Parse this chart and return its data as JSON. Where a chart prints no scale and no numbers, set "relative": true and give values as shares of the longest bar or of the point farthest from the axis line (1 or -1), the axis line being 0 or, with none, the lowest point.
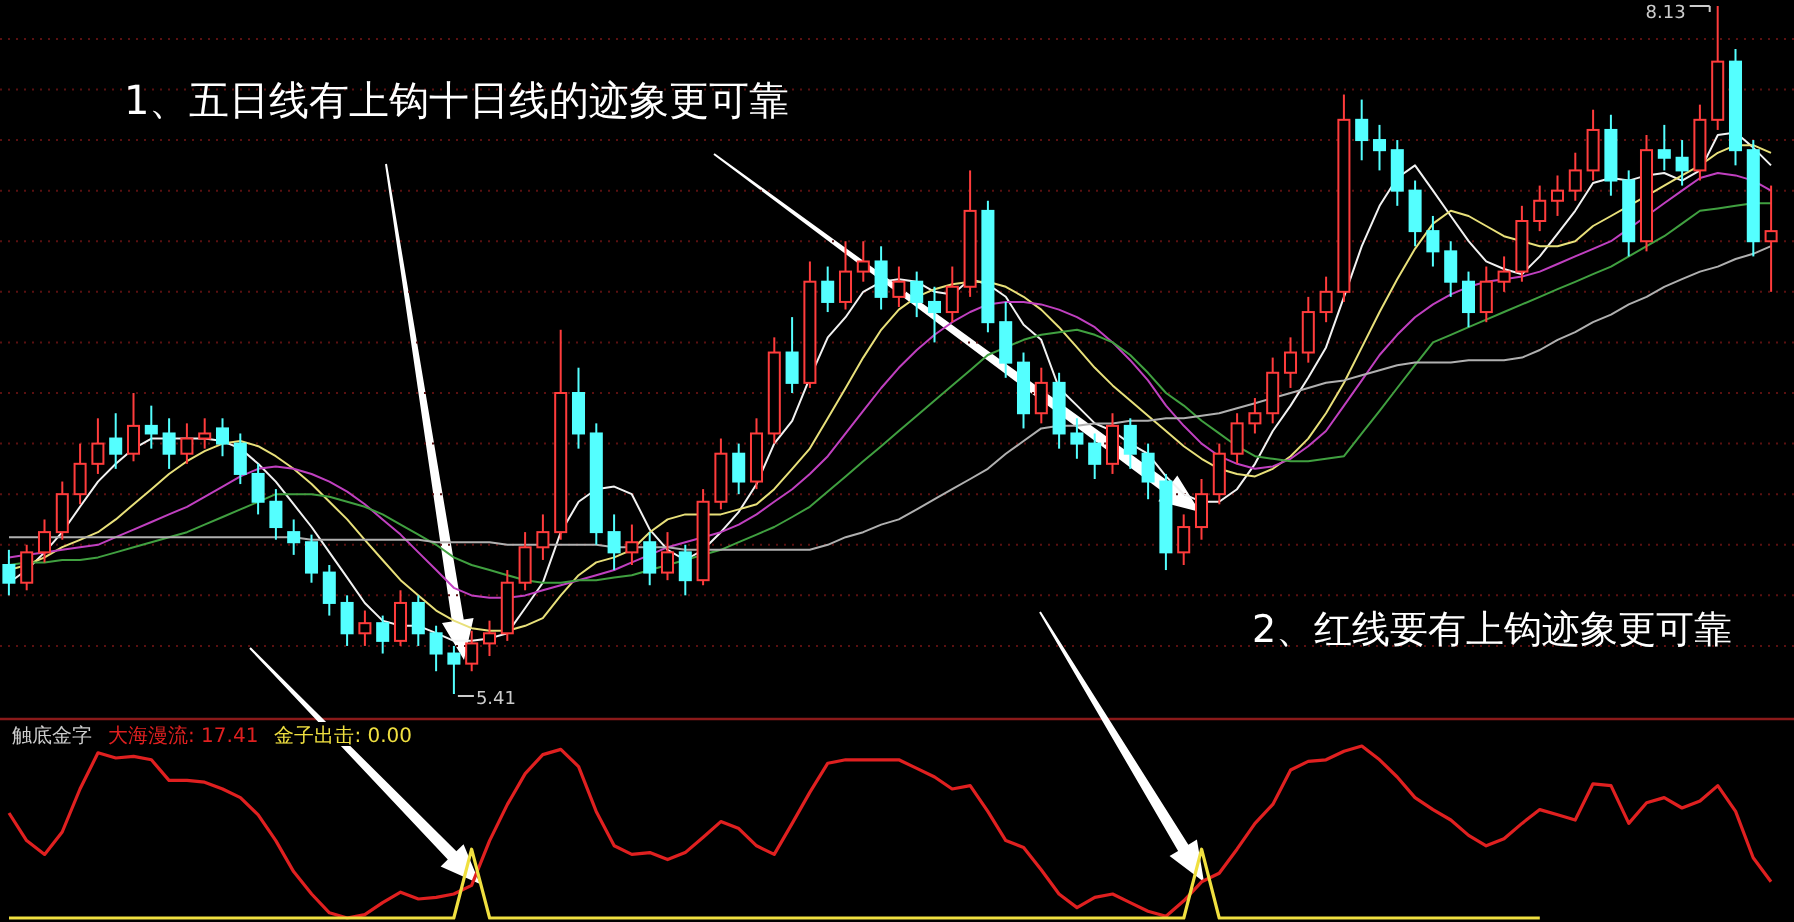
{
  "chart_data": [
    {
      "type": "candlestick",
      "grid": "y",
      "yticks": [
        {
          "value": 5.6,
          "label": null
        },
        {
          "value": 5.8,
          "label": null
        },
        {
          "value": 6.0,
          "label": null
        },
        {
          "value": 6.2,
          "label": null
        },
        {
          "value": 6.4,
          "label": null
        },
        {
          "value": 6.6,
          "label": null
        },
        {
          "value": 6.8,
          "label": null
        },
        {
          "value": 7.0,
          "label": null
        },
        {
          "value": 7.2,
          "label": null
        },
        {
          "value": 7.4,
          "label": null
        },
        {
          "value": 7.6,
          "label": null
        },
        {
          "value": 7.8,
          "label": null
        },
        {
          "value": 8.0,
          "label": null
        }
      ],
      "annotations": [
        "1、五日线有上钩十日线的迹象更可靠",
        "2、红线要有上钩迹象更可靠",
        "8.13",
        "5.41"
      ],
      "categories": [
        null,
        null,
        null,
        null,
        null,
        null,
        null,
        null,
        null,
        null,
        null,
        null,
        null,
        null,
        null,
        null,
        null,
        null,
        null,
        null,
        null,
        null,
        null,
        null,
        null,
        null,
        null,
        null,
        null,
        null,
        null,
        null,
        null,
        null,
        null,
        null,
        null,
        null,
        null,
        null,
        null,
        null,
        null,
        null,
        null,
        null,
        null,
        null,
        null,
        null,
        null,
        null,
        null,
        null,
        null,
        null,
        null,
        null,
        null,
        null,
        null,
        null,
        null,
        null,
        null,
        null,
        null,
        null,
        null,
        null,
        null,
        null,
        null,
        null,
        null,
        null,
        null,
        null,
        null,
        null,
        null,
        null,
        null,
        null,
        null,
        null,
        null,
        null,
        null,
        null,
        null,
        null,
        null,
        null,
        null,
        null,
        null,
        null,
        null,
        null
      ],
      "ohlc": [
        [
          5.92,
          5.98,
          5.8,
          5.85
        ],
        [
          5.85,
          6.0,
          5.82,
          5.97
        ],
        [
          5.97,
          6.1,
          5.93,
          6.05
        ],
        [
          6.05,
          6.25,
          6.02,
          6.2
        ],
        [
          6.2,
          6.4,
          6.16,
          6.32
        ],
        [
          6.32,
          6.5,
          6.28,
          6.4
        ],
        [
          6.42,
          6.52,
          6.3,
          6.36
        ],
        [
          6.36,
          6.6,
          6.33,
          6.47
        ],
        [
          6.47,
          6.55,
          6.38,
          6.44
        ],
        [
          6.44,
          6.5,
          6.3,
          6.36
        ],
        [
          6.36,
          6.48,
          6.32,
          6.42
        ],
        [
          6.42,
          6.5,
          6.38,
          6.44
        ],
        [
          6.46,
          6.5,
          6.35,
          6.4
        ],
        [
          6.4,
          6.44,
          6.24,
          6.28
        ],
        [
          6.28,
          6.32,
          6.12,
          6.17
        ],
        [
          6.17,
          6.22,
          6.02,
          6.07
        ],
        [
          6.05,
          6.1,
          5.96,
          6.01
        ],
        [
          6.01,
          6.04,
          5.85,
          5.89
        ],
        [
          5.89,
          5.92,
          5.72,
          5.77
        ],
        [
          5.77,
          5.8,
          5.6,
          5.65
        ],
        [
          5.65,
          5.74,
          5.6,
          5.69
        ],
        [
          5.69,
          5.72,
          5.57,
          5.62
        ],
        [
          5.62,
          5.82,
          5.6,
          5.77
        ],
        [
          5.77,
          5.8,
          5.6,
          5.65
        ],
        [
          5.65,
          5.68,
          5.5,
          5.57
        ],
        [
          5.57,
          5.6,
          5.41,
          5.53
        ],
        [
          5.53,
          5.66,
          5.5,
          5.61
        ],
        [
          5.61,
          5.7,
          5.56,
          5.65
        ],
        [
          5.65,
          5.9,
          5.62,
          5.85
        ],
        [
          5.85,
          6.05,
          5.82,
          5.99
        ],
        [
          5.99,
          6.12,
          5.94,
          6.05
        ],
        [
          6.05,
          6.85,
          6.02,
          6.6
        ],
        [
          6.6,
          6.7,
          6.38,
          6.44
        ],
        [
          6.44,
          6.48,
          6.0,
          6.05
        ],
        [
          6.05,
          6.12,
          5.9,
          5.97
        ],
        [
          5.97,
          6.08,
          5.92,
          6.01
        ],
        [
          6.01,
          6.05,
          5.84,
          5.89
        ],
        [
          5.89,
          6.05,
          5.86,
          5.97
        ],
        [
          5.97,
          6.0,
          5.8,
          5.86
        ],
        [
          5.86,
          6.22,
          5.84,
          6.17
        ],
        [
          6.17,
          6.42,
          6.14,
          6.36
        ],
        [
          6.36,
          6.4,
          6.2,
          6.25
        ],
        [
          6.25,
          6.5,
          6.22,
          6.44
        ],
        [
          6.44,
          6.82,
          6.4,
          6.76
        ],
        [
          6.76,
          6.9,
          6.6,
          6.64
        ],
        [
          6.64,
          7.12,
          6.62,
          7.04
        ],
        [
          7.04,
          7.1,
          6.92,
          6.96
        ],
        [
          6.96,
          7.2,
          6.93,
          7.08
        ],
        [
          7.08,
          7.2,
          7.04,
          7.12
        ],
        [
          7.12,
          7.18,
          6.93,
          6.98
        ],
        [
          6.98,
          7.1,
          6.94,
          7.04
        ],
        [
          7.04,
          7.08,
          6.9,
          6.96
        ],
        [
          6.96,
          7.02,
          6.8,
          6.92
        ],
        [
          6.92,
          7.1,
          6.88,
          7.02
        ],
        [
          7.02,
          7.48,
          6.98,
          7.32
        ],
        [
          7.32,
          7.36,
          6.84,
          6.88
        ],
        [
          6.88,
          6.96,
          6.66,
          6.72
        ],
        [
          6.72,
          6.76,
          6.46,
          6.52
        ],
        [
          6.52,
          6.7,
          6.48,
          6.64
        ],
        [
          6.64,
          6.68,
          6.38,
          6.44
        ],
        [
          6.44,
          6.5,
          6.34,
          6.4
        ],
        [
          6.4,
          6.44,
          6.26,
          6.32
        ],
        [
          6.32,
          6.52,
          6.28,
          6.47
        ],
        [
          6.47,
          6.5,
          6.3,
          6.36
        ],
        [
          6.36,
          6.4,
          6.18,
          6.25
        ],
        [
          6.25,
          6.28,
          5.9,
          5.97
        ],
        [
          5.97,
          6.12,
          5.92,
          6.07
        ],
        [
          6.07,
          6.26,
          6.02,
          6.2
        ],
        [
          6.2,
          6.4,
          6.16,
          6.36
        ],
        [
          6.36,
          6.52,
          6.32,
          6.48
        ],
        [
          6.48,
          6.58,
          6.44,
          6.52
        ],
        [
          6.52,
          6.74,
          6.48,
          6.68
        ],
        [
          6.68,
          6.82,
          6.62,
          6.76
        ],
        [
          6.76,
          6.98,
          6.72,
          6.92
        ],
        [
          6.92,
          7.06,
          6.88,
          7.0
        ],
        [
          7.0,
          7.78,
          6.96,
          7.68
        ],
        [
          7.68,
          7.76,
          7.52,
          7.6
        ],
        [
          7.6,
          7.66,
          7.48,
          7.56
        ],
        [
          7.56,
          7.6,
          7.34,
          7.4
        ],
        [
          7.4,
          7.44,
          7.18,
          7.24
        ],
        [
          7.24,
          7.3,
          7.1,
          7.16
        ],
        [
          7.16,
          7.2,
          6.98,
          7.04
        ],
        [
          7.04,
          7.08,
          6.86,
          6.92
        ],
        [
          6.92,
          7.1,
          6.88,
          7.04
        ],
        [
          7.04,
          7.14,
          7.0,
          7.08
        ],
        [
          7.08,
          7.34,
          7.04,
          7.28
        ],
        [
          7.28,
          7.42,
          7.24,
          7.36
        ],
        [
          7.36,
          7.46,
          7.3,
          7.4
        ],
        [
          7.4,
          7.55,
          7.36,
          7.48
        ],
        [
          7.48,
          7.72,
          7.44,
          7.64
        ],
        [
          7.64,
          7.7,
          7.38,
          7.44
        ],
        [
          7.44,
          7.48,
          7.14,
          7.2
        ],
        [
          7.2,
          7.62,
          7.16,
          7.56
        ],
        [
          7.56,
          7.66,
          7.48,
          7.53
        ],
        [
          7.53,
          7.6,
          7.42,
          7.48
        ],
        [
          7.48,
          7.74,
          7.44,
          7.68
        ],
        [
          7.68,
          8.13,
          7.64,
          7.91
        ],
        [
          7.91,
          7.96,
          7.5,
          7.56
        ],
        [
          7.56,
          7.6,
          7.14,
          7.2
        ],
        [
          7.2,
          7.42,
          7.0,
          7.24
        ]
      ],
      "series": [
        {
          "type": "line",
          "color": "#f2f2f2",
          "values": [
            5.85,
            5.9,
            5.97,
            6.05,
            6.15,
            6.25,
            6.32,
            6.38,
            6.42,
            6.42,
            6.42,
            6.42,
            6.41,
            6.38,
            6.32,
            6.25,
            6.16,
            6.07,
            5.97,
            5.87,
            5.77,
            5.7,
            5.68,
            5.68,
            5.65,
            5.62,
            5.62,
            5.63,
            5.65,
            5.75,
            5.85,
            6.05,
            6.17,
            6.22,
            6.23,
            6.2,
            6.06,
            5.98,
            5.94,
            5.98,
            6.05,
            6.13,
            6.24,
            6.4,
            6.49,
            6.66,
            6.82,
            6.9,
            7.0,
            7.04,
            7.05,
            7.04,
            7.0,
            6.99,
            7.05,
            7.03,
            6.98,
            6.87,
            6.81,
            6.62,
            6.55,
            6.48,
            6.45,
            6.4,
            6.36,
            6.27,
            6.2,
            6.17,
            6.17,
            6.22,
            6.32,
            6.45,
            6.55,
            6.66,
            6.78,
            6.98,
            7.18,
            7.34,
            7.45,
            7.5,
            7.4,
            7.3,
            7.2,
            7.12,
            7.09,
            7.07,
            7.14,
            7.23,
            7.32,
            7.43,
            7.45,
            7.44,
            7.46,
            7.47,
            7.44,
            7.48,
            7.62,
            7.63,
            7.57,
            7.5
          ]
        },
        {
          "type": "line",
          "color": "#e8e07a",
          "values": [
            5.9,
            5.92,
            5.95,
            5.99,
            6.02,
            6.05,
            6.1,
            6.16,
            6.22,
            6.28,
            6.33,
            6.37,
            6.4,
            6.41,
            6.39,
            6.35,
            6.3,
            6.24,
            6.17,
            6.1,
            6.02,
            5.94,
            5.86,
            5.8,
            5.74,
            5.7,
            5.67,
            5.66,
            5.66,
            5.68,
            5.71,
            5.8,
            5.88,
            5.93,
            5.95,
            5.98,
            6.05,
            6.1,
            6.12,
            6.12,
            6.12,
            6.14,
            6.16,
            6.22,
            6.3,
            6.38,
            6.5,
            6.62,
            6.74,
            6.85,
            6.93,
            6.98,
            7.01,
            7.03,
            7.04,
            7.04,
            7.02,
            6.98,
            6.93,
            6.86,
            6.78,
            6.7,
            6.63,
            6.57,
            6.51,
            6.45,
            6.39,
            6.34,
            6.3,
            6.28,
            6.27,
            6.3,
            6.35,
            6.42,
            6.52,
            6.64,
            6.78,
            6.92,
            7.05,
            7.17,
            7.27,
            7.32,
            7.3,
            7.26,
            7.22,
            7.2,
            7.18,
            7.18,
            7.2,
            7.26,
            7.3,
            7.34,
            7.38,
            7.42,
            7.46,
            7.5,
            7.55,
            7.58,
            7.58,
            7.55
          ]
        },
        {
          "type": "line",
          "color": "#c040c0",
          "values": [
            5.95,
            5.96,
            5.97,
            5.98,
            5.99,
            6.0,
            6.03,
            6.06,
            6.09,
            6.12,
            6.15,
            6.19,
            6.23,
            6.27,
            6.3,
            6.31,
            6.3,
            6.28,
            6.25,
            6.21,
            6.16,
            6.1,
            6.04,
            5.97,
            5.9,
            5.83,
            5.8,
            5.79,
            5.79,
            5.8,
            5.82,
            5.84,
            5.86,
            5.88,
            5.9,
            5.93,
            5.96,
            5.99,
            6.01,
            6.03,
            6.05,
            6.08,
            6.12,
            6.17,
            6.22,
            6.28,
            6.35,
            6.44,
            6.53,
            6.62,
            6.7,
            6.77,
            6.83,
            6.88,
            6.92,
            6.95,
            6.96,
            6.96,
            6.95,
            6.93,
            6.9,
            6.86,
            6.8,
            6.73,
            6.65,
            6.55,
            6.47,
            6.4,
            6.35,
            6.32,
            6.3,
            6.31,
            6.34,
            6.39,
            6.45,
            6.55,
            6.65,
            6.75,
            6.83,
            6.9,
            6.95,
            6.99,
            7.02,
            7.04,
            7.05,
            7.06,
            7.08,
            7.11,
            7.14,
            7.17,
            7.2,
            7.25,
            7.3,
            7.35,
            7.4,
            7.45,
            7.47,
            7.46,
            7.44,
            7.4
          ]
        },
        {
          "type": "line",
          "color": "#40a040",
          "values": [
            5.92,
            5.93,
            5.93,
            5.94,
            5.94,
            5.95,
            5.97,
            5.99,
            6.01,
            6.03,
            6.05,
            6.08,
            6.11,
            6.14,
            6.17,
            6.2,
            6.2,
            6.2,
            6.19,
            6.17,
            6.15,
            6.12,
            6.08,
            6.04,
            6.0,
            5.95,
            5.92,
            5.9,
            5.88,
            5.86,
            5.85,
            5.85,
            5.86,
            5.86,
            5.87,
            5.88,
            5.9,
            5.92,
            5.94,
            5.96,
            5.98,
            6.01,
            6.04,
            6.07,
            6.11,
            6.15,
            6.21,
            6.27,
            6.33,
            6.39,
            6.45,
            6.51,
            6.57,
            6.63,
            6.69,
            6.75,
            6.78,
            6.81,
            6.83,
            6.84,
            6.85,
            6.83,
            6.8,
            6.75,
            6.68,
            6.6,
            6.55,
            6.49,
            6.44,
            6.39,
            6.35,
            6.34,
            6.33,
            6.33,
            6.34,
            6.35,
            6.44,
            6.53,
            6.62,
            6.71,
            6.8,
            6.83,
            6.86,
            6.89,
            6.92,
            6.95,
            6.98,
            7.01,
            7.04,
            7.07,
            7.1,
            7.14,
            7.18,
            7.22,
            7.27,
            7.32,
            7.33,
            7.34,
            7.35,
            7.35
          ]
        },
        {
          "type": "line",
          "color": "#b0b0b0",
          "values": [
            6.03,
            6.03,
            6.03,
            6.03,
            6.03,
            6.03,
            6.03,
            6.03,
            6.03,
            6.03,
            6.03,
            6.03,
            6.03,
            6.03,
            6.03,
            6.03,
            6.03,
            6.02,
            6.02,
            6.02,
            6.02,
            6.02,
            6.02,
            6.02,
            6.01,
            6.01,
            6.01,
            6.01,
            6.0,
            6.0,
            6.0,
            6.0,
            6.0,
            6.0,
            5.99,
            5.99,
            5.99,
            5.99,
            5.98,
            5.98,
            5.98,
            5.98,
            5.98,
            5.98,
            5.98,
            5.98,
            6.0,
            6.03,
            6.05,
            6.08,
            6.1,
            6.14,
            6.18,
            6.22,
            6.26,
            6.3,
            6.36,
            6.41,
            6.46,
            6.47,
            6.47,
            6.48,
            6.48,
            6.49,
            6.49,
            6.5,
            6.5,
            6.51,
            6.52,
            6.54,
            6.56,
            6.58,
            6.6,
            6.62,
            6.64,
            6.65,
            6.67,
            6.69,
            6.71,
            6.72,
            6.72,
            6.72,
            6.73,
            6.73,
            6.73,
            6.74,
            6.77,
            6.81,
            6.84,
            6.88,
            6.91,
            6.95,
            6.98,
            7.02,
            7.05,
            7.08,
            7.1,
            7.13,
            7.15,
            7.18
          ]
        }
      ]
    },
    {
      "type": "line",
      "relative": true,
      "legend": "top left",
      "title": "触底金字",
      "categories": [
        null,
        null,
        null,
        null,
        null,
        null,
        null,
        null,
        null,
        null,
        null,
        null,
        null,
        null,
        null,
        null,
        null,
        null,
        null,
        null,
        null,
        null,
        null,
        null,
        null,
        null,
        null,
        null,
        null,
        null,
        null,
        null,
        null,
        null,
        null,
        null,
        null,
        null,
        null,
        null,
        null,
        null,
        null,
        null,
        null,
        null,
        null,
        null,
        null,
        null,
        null,
        null,
        null,
        null,
        null,
        null,
        null,
        null,
        null,
        null,
        null,
        null,
        null,
        null,
        null,
        null,
        null,
        null,
        null,
        null,
        null,
        null,
        null,
        null,
        null,
        null,
        null,
        null,
        null,
        null,
        null,
        null,
        null,
        null,
        null,
        null,
        null,
        null,
        null,
        null,
        null,
        null,
        null,
        null,
        null,
        null,
        null,
        null,
        null,
        null
      ],
      "series": [
        {
          "name": "大海漫流: 17.41",
          "color": "#e02020",
          "values": [
            0.61,
            0.45,
            0.37,
            0.5,
            0.75,
            0.96,
            0.93,
            0.94,
            0.92,
            0.8,
            0.8,
            0.79,
            0.75,
            0.7,
            0.6,
            0.45,
            0.27,
            0.14,
            0.03,
            0,
            0.02,
            0.09,
            0.15,
            0.11,
            0.12,
            0.14,
            0.19,
            0.45,
            0.66,
            0.84,
            0.95,
            0.98,
            0.88,
            0.62,
            0.42,
            0.37,
            0.38,
            0.34,
            0.38,
            0.47,
            0.56,
            0.52,
            0.42,
            0.37,
            0.55,
            0.73,
            0.9,
            0.92,
            0.92,
            0.92,
            0.92,
            0.87,
            0.82,
            0.75,
            0.77,
            0.62,
            0.45,
            0.41,
            0.28,
            0.14,
            0.06,
            0.12,
            0.14,
            0.09,
            0.04,
            0.01,
            0.1,
            0.21,
            0.26,
            0.4,
            0.55,
            0.66,
            0.86,
            0.91,
            0.92,
            0.97,
            1,
            0.92,
            0.82,
            0.7,
            0.63,
            0.57,
            0.48,
            0.42,
            0.46,
            0.55,
            0.63,
            0.6,
            0.57,
            0.78,
            0.77,
            0.55,
            0.67,
            0.7,
            0.64,
            0.68,
            0.77,
            0.62,
            0.35,
            0.21
          ]
        },
        {
          "name": "金子出击: 0.00",
          "color": "#f0e040",
          "values": [
            0,
            0,
            0,
            0,
            0,
            0,
            0,
            0,
            0,
            0,
            0,
            0,
            0,
            0,
            0,
            0,
            0,
            0,
            0,
            0,
            0,
            0,
            0,
            0,
            0,
            0,
            0.4,
            0,
            0,
            0,
            0,
            0,
            0,
            0,
            0,
            0,
            0,
            0,
            0,
            0,
            0,
            0,
            0,
            0,
            0,
            0,
            0,
            0,
            0,
            0,
            0,
            0,
            0,
            0,
            0,
            0,
            0,
            0,
            0,
            0,
            0,
            0,
            0,
            0,
            0,
            0,
            0,
            0.4,
            0,
            0,
            0,
            0,
            0,
            0,
            0,
            0,
            0,
            0,
            0,
            0,
            0,
            0,
            0,
            0,
            0,
            0,
            0,
            null,
            null,
            null,
            null,
            null,
            null,
            null,
            null,
            null,
            null,
            null,
            null,
            null
          ]
        }
      ]
    }
  ]
}
